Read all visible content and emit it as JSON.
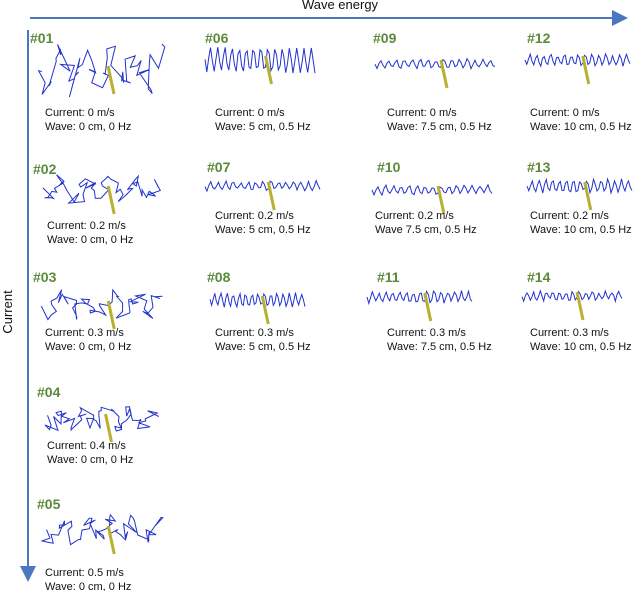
{
  "axes": {
    "x_label": "Wave energy",
    "y_label": "Current"
  },
  "panels": [
    {
      "id": "#01",
      "current": "Current: 0 m/s",
      "wave": "Wave: 0 cm, 0 Hz"
    },
    {
      "id": "#06",
      "current": "Current: 0 m/s",
      "wave": "Wave: 5 cm, 0.5 Hz"
    },
    {
      "id": "#09",
      "current": "Current: 0 m/s",
      "wave": "Wave: 7.5 cm, 0.5 Hz"
    },
    {
      "id": "#12",
      "current": "Current: 0 m/s",
      "wave": "Wave: 10 cm, 0.5 Hz"
    },
    {
      "id": "#02",
      "current": "Current: 0.2 m/s",
      "wave": "Wave: 0 cm, 0 Hz"
    },
    {
      "id": "#07",
      "current": "Current: 0.2 m/s",
      "wave": "Wave: 5 cm, 0.5 Hz"
    },
    {
      "id": "#10",
      "current": "Current: 0.2 m/s",
      "wave": "Wave 7.5 cm, 0.5 Hz"
    },
    {
      "id": "#13",
      "current": "Current: 0.2 m/s",
      "wave": "Wave: 10 cm, 0.5 Hz"
    },
    {
      "id": "#03",
      "current": "Current: 0.3 m/s",
      "wave": "Wave: 0 cm, 0 Hz"
    },
    {
      "id": "#08",
      "current": "Current: 0.3 m/s",
      "wave": "Wave: 5 cm, 0.5 Hz"
    },
    {
      "id": "#11",
      "current": "Current: 0.3 m/s",
      "wave": "Wave: 7.5 cm, 0.5 Hz"
    },
    {
      "id": "#14",
      "current": "Current: 0.3 m/s",
      "wave": "Wave: 10 cm, 0.5 Hz"
    },
    {
      "id": "#04",
      "current": "Current: 0.4 m/s",
      "wave": "Wave: 0 cm, 0 Hz"
    },
    {
      "id": "#05",
      "current": "Current: 0.5 m/s",
      "wave": "Wave: 0 cm, 0 Hz"
    }
  ]
}
